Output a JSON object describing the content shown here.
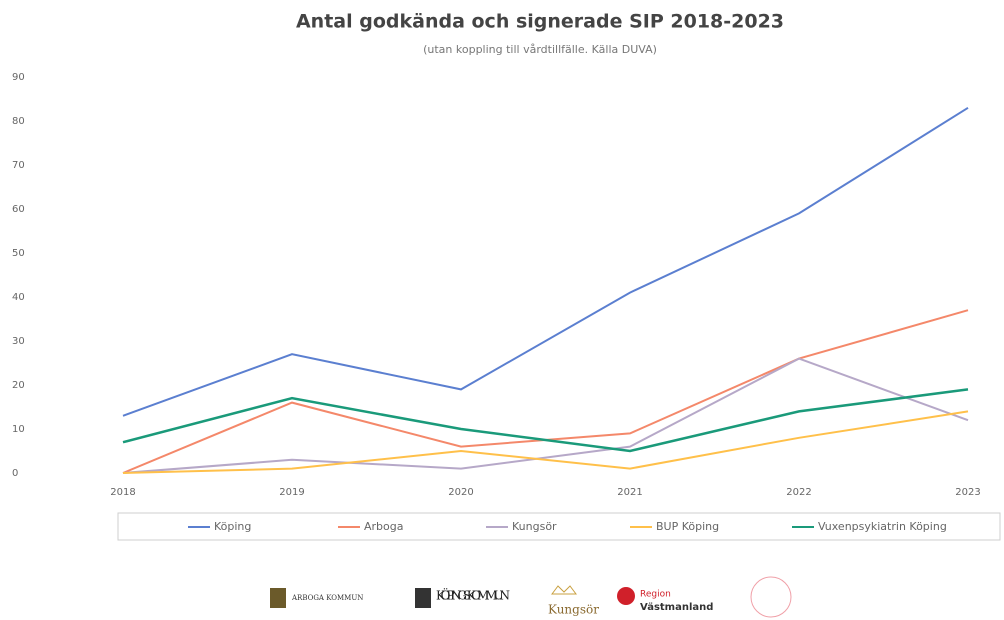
{
  "chart_data": {
    "type": "line",
    "title": "Antal godkända och signerade SIP 2018-2023",
    "subtitle": "(utan koppling till vårdtillfälle. Källa DUVA)",
    "categories": [
      "2018",
      "2019",
      "2020",
      "2021",
      "2022",
      "2023"
    ],
    "series": [
      {
        "name": "Köping",
        "color": "#5b7fd0",
        "values": [
          13,
          27,
          19,
          41,
          59,
          83
        ]
      },
      {
        "name": "Arboga",
        "color": "#f4886a",
        "values": [
          0,
          16,
          6,
          9,
          26,
          37
        ]
      },
      {
        "name": "Kungsör",
        "color": "#b6a8c8",
        "values": [
          0,
          3,
          1,
          6,
          26,
          12
        ]
      },
      {
        "name": "BUP Köping",
        "color": "#ffc04a",
        "values": [
          0,
          1,
          5,
          1,
          8,
          14
        ]
      },
      {
        "name": "Vuxenpsykiatrin Köping",
        "color": "#1a9a7a",
        "values": [
          7,
          17,
          10,
          5,
          14,
          19
        ]
      }
    ],
    "ylim": [
      0,
      90
    ],
    "yticks": [
      0,
      10,
      20,
      30,
      40,
      50,
      60,
      70,
      80,
      90
    ],
    "grid": false,
    "legend": "bottom"
  },
  "logos": [
    "ARBOGA KOMMUN",
    "KÖPINGS KOMMUN",
    "Kungsör",
    "Region",
    "Västmanland"
  ]
}
